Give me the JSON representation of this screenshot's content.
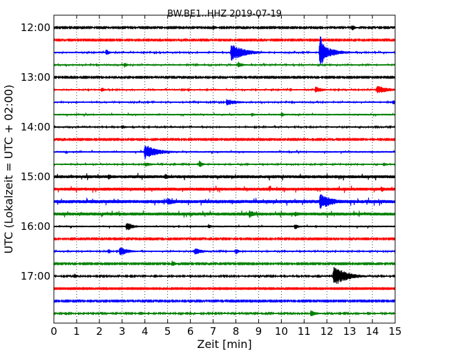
{
  "chart_data": {
    "type": "line",
    "title": "BW.BE1..HHZ 2019-07-19",
    "xlabel": "Zeit  [min]",
    "ylabel": "UTC (Lokalzeit = UTC + 02:00)",
    "xlim": [
      0,
      15
    ],
    "x_ticks": [
      "0",
      "1",
      "2",
      "3",
      "4",
      "5",
      "6",
      "7",
      "8",
      "9",
      "10",
      "11",
      "12",
      "13",
      "14",
      "15"
    ],
    "y_tick_labels": [
      "12:00",
      "13:00",
      "14:00",
      "15:00",
      "16:00",
      "17:00"
    ],
    "grid": true,
    "trace_colors": [
      "#000000",
      "#ff0000",
      "#0000ff",
      "#008000"
    ],
    "series": [
      {
        "start": "12:00",
        "color": "black",
        "noise": 0.8,
        "events": [
          {
            "t": 7.0,
            "amp": 4,
            "dur": 0.15
          },
          {
            "t": 13.1,
            "amp": 5,
            "dur": 0.15
          }
        ]
      },
      {
        "start": "12:15",
        "color": "red",
        "noise": 0.8,
        "events": []
      },
      {
        "start": "12:30",
        "color": "blue",
        "noise": 1.0,
        "events": [
          {
            "t": 2.3,
            "amp": 5,
            "dur": 0.15
          },
          {
            "t": 7.8,
            "amp": 13,
            "dur": 0.6
          },
          {
            "t": 11.7,
            "amp": 28,
            "dur": 0.2
          },
          {
            "t": 11.9,
            "amp": 9,
            "dur": 0.6
          }
        ]
      },
      {
        "start": "12:45",
        "color": "green",
        "noise": 1.0,
        "events": [
          {
            "t": 3.1,
            "amp": 4,
            "dur": 0.15
          },
          {
            "t": 8.1,
            "amp": 5,
            "dur": 0.2
          }
        ]
      },
      {
        "start": "13:00",
        "color": "black",
        "noise": 0.8,
        "events": []
      },
      {
        "start": "13:15",
        "color": "red",
        "noise": 1.0,
        "events": [
          {
            "t": 2.1,
            "amp": 4,
            "dur": 0.15
          },
          {
            "t": 5.9,
            "amp": 3,
            "dur": 0.15
          },
          {
            "t": 11.5,
            "amp": 5,
            "dur": 0.35
          },
          {
            "t": 14.2,
            "amp": 6,
            "dur": 0.6
          }
        ]
      },
      {
        "start": "13:30",
        "color": "blue",
        "noise": 1.0,
        "events": [
          {
            "t": 7.6,
            "amp": 5,
            "dur": 0.5
          },
          {
            "t": 14.9,
            "amp": 4,
            "dur": 0.15
          }
        ]
      },
      {
        "start": "13:45",
        "color": "green",
        "noise": 1.2,
        "events": [
          {
            "t": 8.7,
            "amp": 3,
            "dur": 0.15
          },
          {
            "t": 10.0,
            "amp": 4,
            "dur": 0.15
          }
        ]
      },
      {
        "start": "14:00",
        "color": "black",
        "noise": 1.0,
        "events": [
          {
            "t": 3.0,
            "amp": 3,
            "dur": 0.2
          }
        ]
      },
      {
        "start": "14:15",
        "color": "red",
        "noise": 0.8,
        "events": [
          {
            "t": 14.0,
            "amp": 3,
            "dur": 0.15
          }
        ]
      },
      {
        "start": "14:30",
        "color": "blue",
        "noise": 1.2,
        "events": [
          {
            "t": 4.0,
            "amp": 11,
            "dur": 0.6
          }
        ]
      },
      {
        "start": "14:45",
        "color": "green",
        "noise": 1.0,
        "events": [
          {
            "t": 4.0,
            "amp": 4,
            "dur": 0.3
          },
          {
            "t": 6.4,
            "amp": 6,
            "dur": 0.15
          },
          {
            "t": 14.5,
            "amp": 3,
            "dur": 0.15
          }
        ]
      },
      {
        "start": "15:00",
        "color": "black",
        "noise": 2.2,
        "events": [
          {
            "t": 2.4,
            "amp": 5,
            "dur": 0.15
          },
          {
            "t": 4.9,
            "amp": 5,
            "dur": 0.2
          }
        ]
      },
      {
        "start": "15:15",
        "color": "red",
        "noise": 2.2,
        "events": [
          {
            "t": 14.4,
            "amp": 5,
            "dur": 0.15
          }
        ]
      },
      {
        "start": "15:30",
        "color": "blue",
        "noise": 2.4,
        "events": [
          {
            "t": 5.0,
            "amp": 5,
            "dur": 0.5
          },
          {
            "t": 11.7,
            "amp": 12,
            "dur": 0.6
          }
        ]
      },
      {
        "start": "15:45",
        "color": "green",
        "noise": 2.2,
        "events": [
          {
            "t": 8.6,
            "amp": 6,
            "dur": 0.3
          },
          {
            "t": 10.6,
            "amp": 4,
            "dur": 0.3
          }
        ]
      },
      {
        "start": "16:00",
        "color": "black",
        "noise": 1.2,
        "events": [
          {
            "t": 3.2,
            "amp": 7,
            "dur": 0.3
          },
          {
            "t": 6.8,
            "amp": 4,
            "dur": 0.15
          },
          {
            "t": 10.6,
            "amp": 5,
            "dur": 0.15
          }
        ]
      },
      {
        "start": "16:15",
        "color": "red",
        "noise": 0.8,
        "events": []
      },
      {
        "start": "16:30",
        "color": "blue",
        "noise": 1.0,
        "events": [
          {
            "t": 2.4,
            "amp": 4,
            "dur": 0.15
          },
          {
            "t": 2.9,
            "amp": 7,
            "dur": 0.4
          },
          {
            "t": 6.2,
            "amp": 5,
            "dur": 0.4
          },
          {
            "t": 8.0,
            "amp": 5,
            "dur": 0.15
          }
        ]
      },
      {
        "start": "16:45",
        "color": "green",
        "noise": 0.8,
        "events": [
          {
            "t": 5.2,
            "amp": 5,
            "dur": 0.15
          }
        ]
      },
      {
        "start": "17:00",
        "color": "black",
        "noise": 0.9,
        "events": [
          {
            "t": 0.9,
            "amp": 4,
            "dur": 0.15
          },
          {
            "t": 12.3,
            "amp": 15,
            "dur": 0.6
          }
        ]
      },
      {
        "start": "17:15",
        "color": "red",
        "noise": 0.7,
        "events": []
      },
      {
        "start": "17:30",
        "color": "blue",
        "noise": 0.8,
        "events": [
          {
            "t": 1.6,
            "amp": 3,
            "dur": 0.15
          }
        ]
      },
      {
        "start": "17:45",
        "color": "green",
        "noise": 0.9,
        "events": [
          {
            "t": 3.8,
            "amp": 3,
            "dur": 0.2
          },
          {
            "t": 11.3,
            "amp": 5,
            "dur": 0.3
          }
        ]
      }
    ]
  }
}
